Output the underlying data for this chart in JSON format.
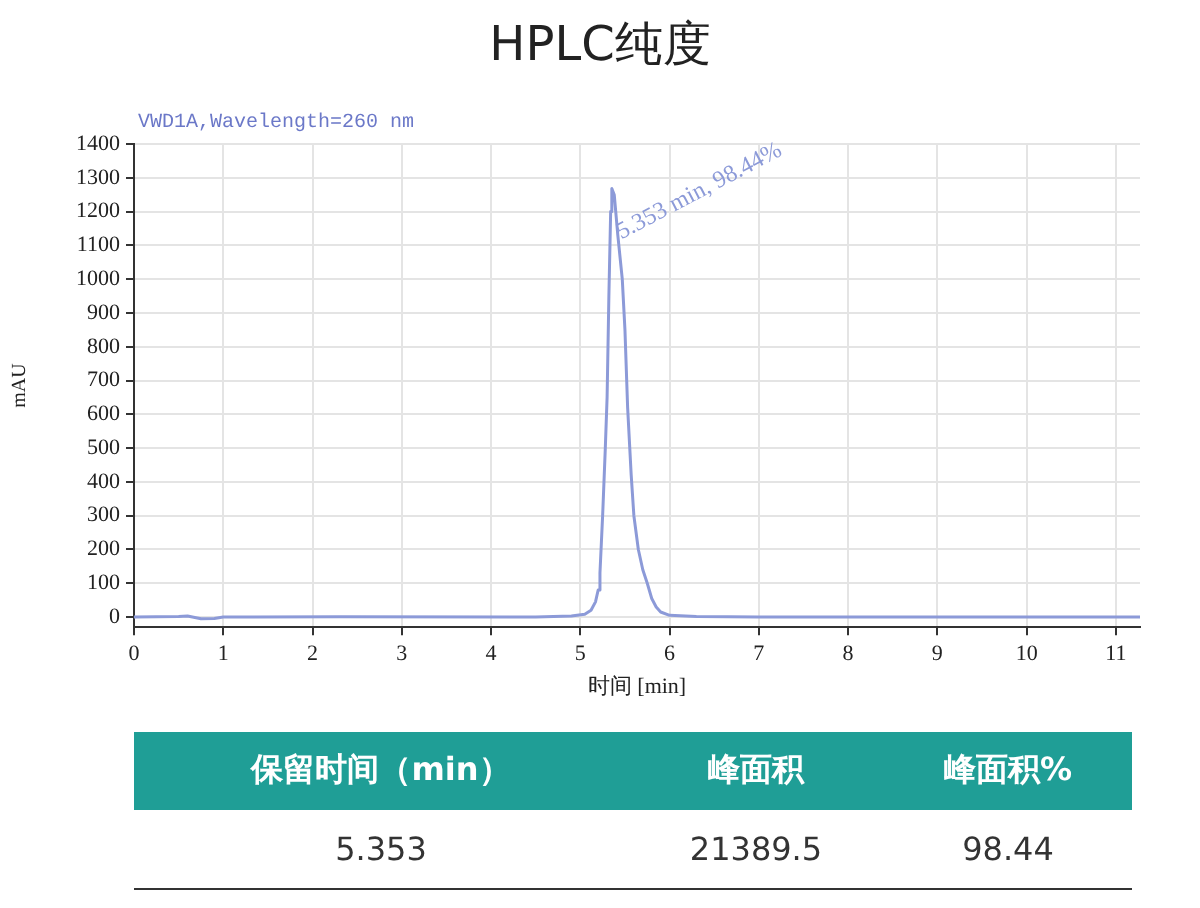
{
  "chart_data": {
    "type": "line",
    "title": "HPLC纯度",
    "subtitle": "VWD1A,Wavelength=260 nm",
    "xlabel": "时间 [min]",
    "ylabel": "mAU",
    "x": [
      0,
      0.5,
      0.6,
      0.75,
      0.9,
      1.0,
      2.3,
      4.5,
      4.9,
      5.05,
      5.12,
      5.17,
      5.2,
      5.22,
      5.25,
      5.28,
      5.3,
      5.32,
      5.34,
      5.353,
      5.38,
      5.42,
      5.47,
      5.5,
      5.53,
      5.57,
      5.6,
      5.65,
      5.7,
      5.75,
      5.8,
      5.85,
      5.9,
      6.0,
      6.3,
      7,
      11.27
    ],
    "series": [
      {
        "color": "#8c9ad8",
        "values": [
          0,
          2,
          3,
          -5,
          -4,
          0,
          1,
          0,
          3,
          8,
          20,
          45,
          80,
          130,
          300,
          500,
          650,
          950,
          1200,
          1268,
          1250,
          1130,
          1000,
          850,
          620,
          420,
          300,
          200,
          140,
          100,
          55,
          30,
          15,
          5,
          2,
          0,
          0
        ]
      }
    ],
    "xlim": [
      0,
      11.27
    ],
    "xticks": [
      0,
      1,
      2,
      3,
      4,
      5,
      6,
      7,
      8,
      9,
      10,
      11
    ],
    "ylim": [
      -30,
      1400
    ],
    "yticks": [
      0,
      100,
      200,
      300,
      400,
      500,
      600,
      700,
      800,
      900,
      1000,
      1100,
      1200,
      1300,
      1400
    ],
    "grid": true,
    "legend": false,
    "marker": "none",
    "line_style": "solid",
    "annotations": [
      {
        "text": "5.353 min, 98.44%",
        "x": 5.353,
        "y": 1268
      },
      "保留时间（min）",
      "峰面积",
      "峰面积%",
      "5.353",
      "21389.5",
      "98.44"
    ]
  }
}
